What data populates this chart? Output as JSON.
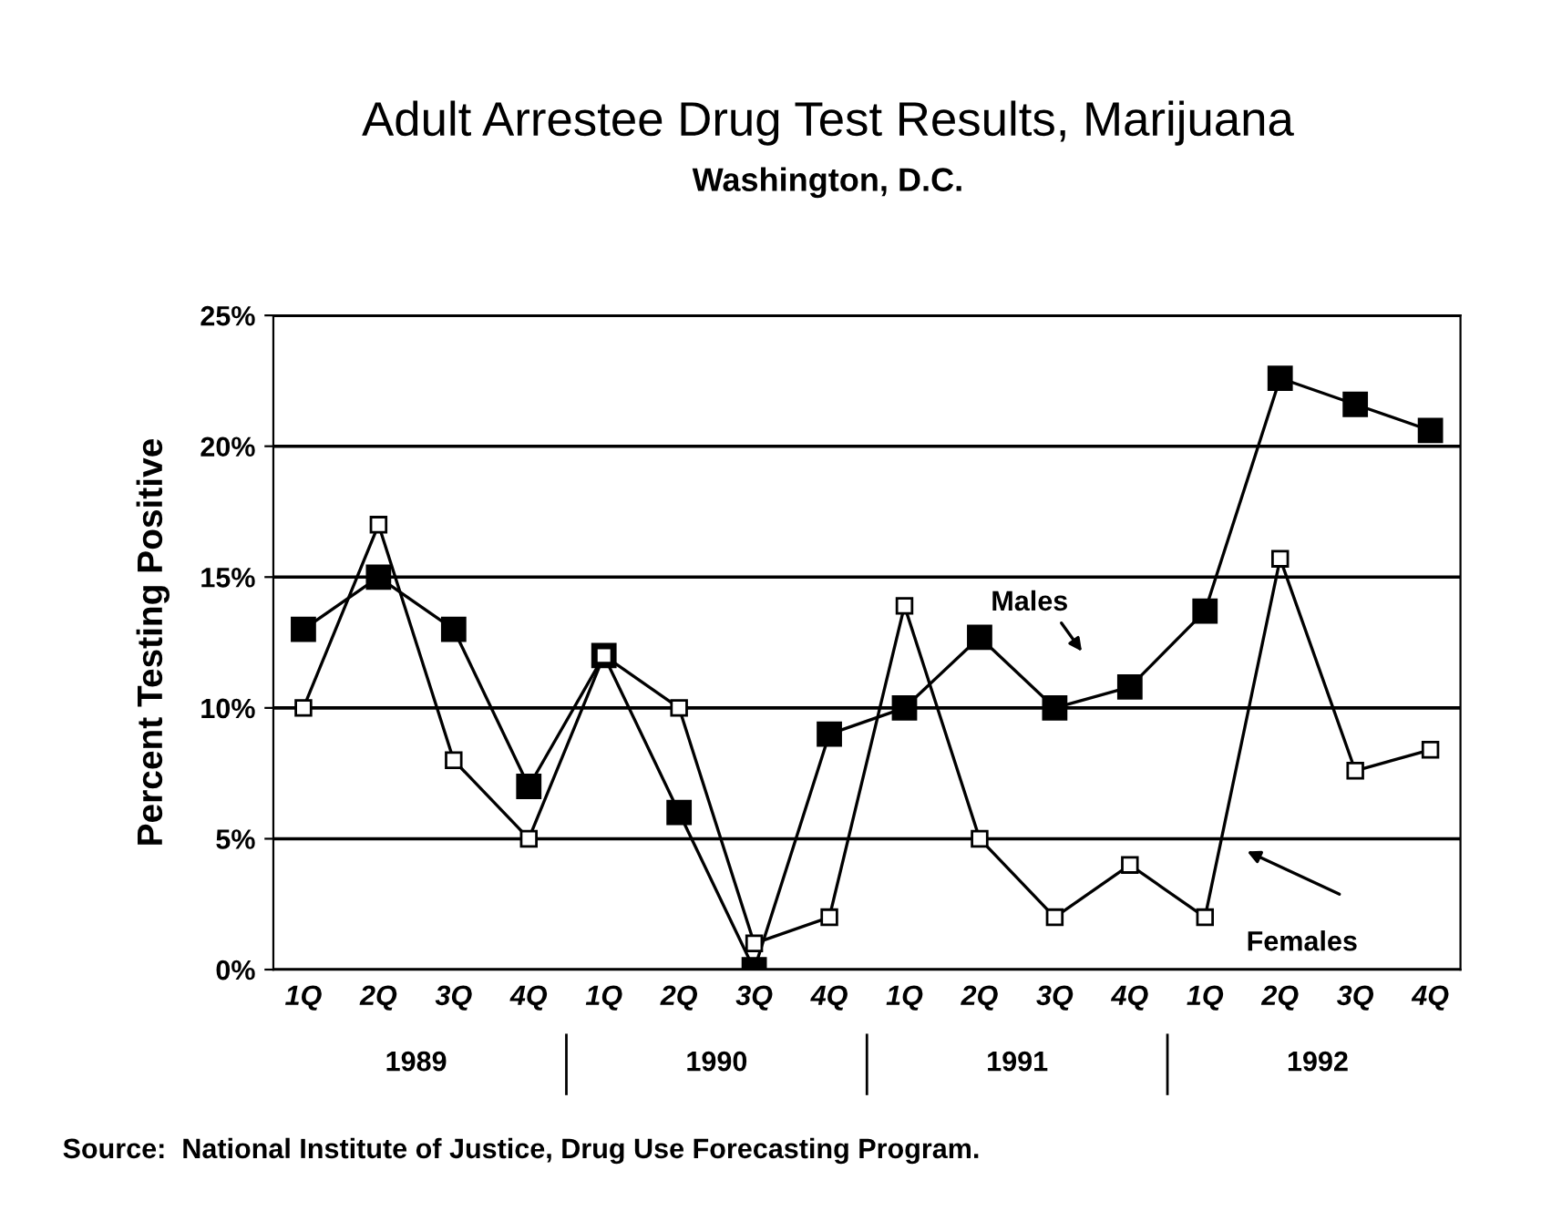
{
  "chart_data": {
    "type": "line",
    "title": "Adult Arrestee Drug Test Results, Marijuana",
    "subtitle": "Washington, D.C.",
    "ylabel": "Percent Testing Positive",
    "categories": [
      "1Q",
      "2Q",
      "3Q",
      "4Q",
      "1Q",
      "2Q",
      "3Q",
      "4Q",
      "1Q",
      "2Q",
      "3Q",
      "4Q",
      "1Q",
      "2Q",
      "3Q",
      "4Q"
    ],
    "series": [
      {
        "name": "Males",
        "color": "#000000",
        "values": [
          13,
          15,
          13,
          7,
          12,
          6,
          0,
          9,
          10,
          12.7,
          10,
          10.8,
          13.7,
          22.6,
          21.6,
          20.6
        ]
      },
      {
        "name": "Females",
        "color": "#000000",
        "values": [
          10,
          17,
          8,
          5,
          12,
          10,
          1,
          2,
          13.9,
          5,
          2,
          4,
          2,
          15.7,
          7.6,
          8.4
        ]
      }
    ],
    "ylim": [
      0,
      25
    ],
    "yticks": [
      {
        "value": 0,
        "label": "0%"
      },
      {
        "value": 5,
        "label": "5%"
      },
      {
        "value": 10,
        "label": "10%"
      },
      {
        "value": 15,
        "label": "15%"
      },
      {
        "value": 20,
        "label": "20%"
      },
      {
        "value": 25,
        "label": "25%"
      }
    ],
    "grid": "y",
    "legend": false,
    "marker": "square",
    "line_style": "solid",
    "annotations": [
      "1989",
      "1990",
      "1991",
      "1992",
      "Source:  National Institute of Justice, Drug Use Forecasting Program."
    ]
  }
}
